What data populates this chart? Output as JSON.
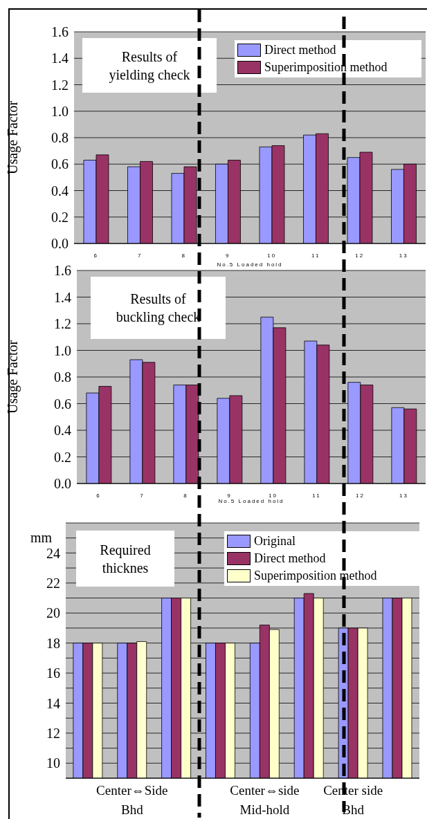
{
  "chart_data": [
    {
      "type": "bar",
      "title": "Results of yielding check",
      "categories": [
        "6",
        "7",
        "8",
        "9",
        "10",
        "11",
        "12",
        "13"
      ],
      "xlabel": "No.5 Loaded hold",
      "ylabel": "Usage Factor",
      "ylim": [
        0,
        1.6
      ],
      "yticks": [
        {
          "value": 0,
          "label": "0.0"
        },
        0.2,
        0.4,
        0.6,
        0.8,
        {
          "value": 1,
          "label": "1.0"
        },
        1.2,
        1.4,
        1.6
      ],
      "grid": "y",
      "legend": "top right",
      "series": [
        {
          "name": "Direct method",
          "color": "#9999ff",
          "values": [
            0.63,
            0.58,
            0.53,
            0.6,
            0.73,
            0.82,
            0.65,
            0.56
          ]
        },
        {
          "name": "Superimposition method",
          "color": "#993366",
          "values": [
            0.67,
            0.62,
            0.58,
            0.63,
            0.74,
            0.83,
            0.69,
            0.6
          ]
        }
      ]
    },
    {
      "type": "bar",
      "title": "Results of buckling check",
      "categories": [
        "6",
        "7",
        "8",
        "9",
        "10",
        "11",
        "12",
        "13"
      ],
      "xlabel": "No.5 Loaded hold",
      "ylabel": "Usage Factor",
      "ylim": [
        0,
        1.6
      ],
      "yticks": [
        {
          "value": 0,
          "label": "0.0"
        },
        0.2,
        0.4,
        0.6,
        0.8,
        {
          "value": 1,
          "label": "1.0"
        },
        1.2,
        1.4,
        1.6
      ],
      "grid": "y",
      "series": [
        {
          "color": "#9999ff",
          "values": [
            0.68,
            0.93,
            0.74,
            0.64,
            1.25,
            1.07,
            0.76,
            0.57
          ]
        },
        {
          "color": "#993366",
          "values": [
            0.73,
            0.91,
            0.74,
            0.66,
            1.17,
            1.04,
            0.74,
            0.56
          ]
        }
      ]
    },
    {
      "type": "bar",
      "title": "Required thicknes",
      "categories": [
        null,
        "Center⇔Side\nBhd",
        null,
        null,
        "Center⇔side\nMid-hold",
        null,
        "Center side\nBhd",
        null
      ],
      "ylabel": "mm",
      "ylim": [
        9,
        26
      ],
      "yticks": [
        {
          "value": 9,
          "label": null
        },
        10,
        {
          "value": 11,
          "label": null
        },
        12,
        {
          "value": 13,
          "label": null
        },
        14,
        {
          "value": 15,
          "label": null
        },
        16,
        {
          "value": 17,
          "label": null
        },
        18,
        {
          "value": 19,
          "label": null
        },
        20,
        {
          "value": 21,
          "label": null
        },
        22,
        {
          "value": 23,
          "label": null
        },
        24,
        {
          "value": 25,
          "label": null
        },
        {
          "value": 26,
          "label": null
        }
      ],
      "grid": "y",
      "legend": "top right",
      "series": [
        {
          "name": "Original",
          "color": "#9999ff",
          "values": [
            18,
            18,
            21,
            18,
            18,
            21,
            19,
            21
          ]
        },
        {
          "name": "Direct method",
          "color": "#993366",
          "values": [
            18,
            18,
            21,
            18,
            19.2,
            21.3,
            19,
            21
          ]
        },
        {
          "name": "Superimposition method",
          "color": "#ffffcc",
          "values": [
            18,
            18.1,
            21,
            18,
            18.9,
            21,
            19,
            21
          ]
        }
      ]
    }
  ]
}
